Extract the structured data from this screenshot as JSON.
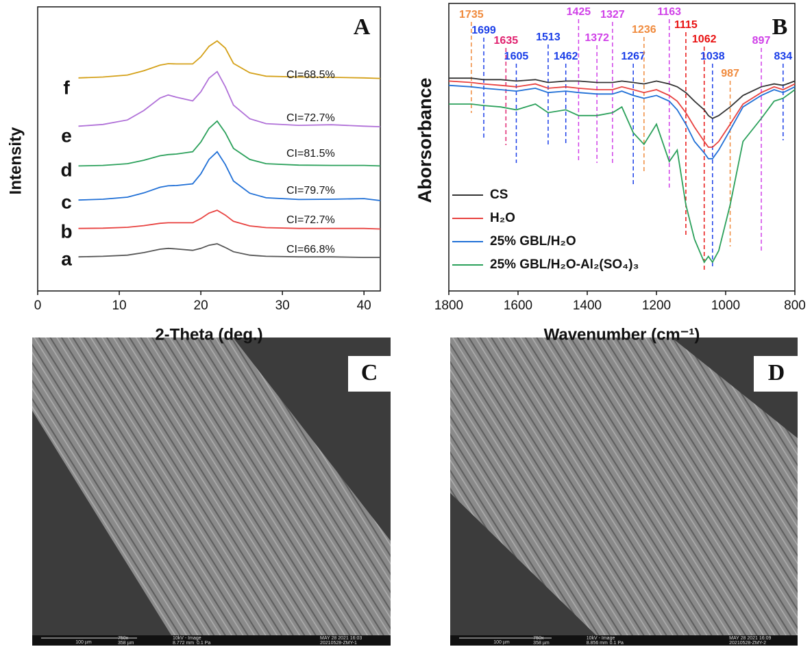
{
  "chart_data": [
    {
      "type": "line",
      "panel": "A",
      "xlabel": "2-Theta (deg.)",
      "ylabel": "Intensity",
      "xlim": [
        0,
        42
      ],
      "xticks": [
        0,
        10,
        20,
        30,
        40
      ],
      "ylim": [
        0,
        100
      ],
      "x": [
        5,
        8,
        11,
        13,
        15,
        16,
        17,
        19,
        20,
        21,
        22,
        23,
        24,
        26,
        28,
        32,
        36,
        40,
        42
      ],
      "series": [
        {
          "name": "a",
          "color": "#555555",
          "annotation": "CI=66.8%",
          "values": [
            12,
            12.2,
            12.6,
            13.5,
            14.7,
            15,
            14.8,
            14.3,
            15,
            16.1,
            16.6,
            15.3,
            13.8,
            12.6,
            12.2,
            12,
            12,
            11.8,
            11.8
          ]
        },
        {
          "name": "b",
          "color": "#e8413f",
          "annotation": "CI=72.7%",
          "values": [
            22,
            22.1,
            22.4,
            23,
            23.8,
            24,
            24,
            24,
            25.5,
            27.4,
            28.4,
            26.7,
            24.5,
            22.9,
            22.3,
            22,
            22,
            22,
            21.8
          ]
        },
        {
          "name": "c",
          "color": "#1f6fd6",
          "annotation": "CI=79.7%",
          "values": [
            32,
            32.3,
            33,
            34.5,
            36.5,
            37,
            37.1,
            37.7,
            41.2,
            46.3,
            49,
            44.5,
            38.7,
            34.4,
            32.8,
            32.2,
            32.3,
            32.5,
            31.8
          ]
        },
        {
          "name": "d",
          "color": "#2aa05a",
          "annotation": "CI=81.5%",
          "values": [
            44,
            44.2,
            44.8,
            46,
            47.6,
            48,
            48.2,
            49,
            52.4,
            57.2,
            59.8,
            55.7,
            50.2,
            46.3,
            44.8,
            44.3,
            44.2,
            44.2,
            44
          ]
        },
        {
          "name": "e",
          "color": "#b070d8",
          "annotation": "CI=72.7%",
          "values": [
            58,
            58.6,
            60.2,
            63.5,
            67.9,
            69,
            68.2,
            66.9,
            70.1,
            74.9,
            77.2,
            71.9,
            65.4,
            60.6,
            58.9,
            58.3,
            58.5,
            58,
            57.8
          ]
        },
        {
          "name": "f",
          "color": "#d4a017",
          "annotation": "CI=68.5%",
          "values": [
            75,
            75.3,
            76,
            77.5,
            79.5,
            80,
            79.9,
            79.9,
            82.4,
            86.1,
            88,
            85.5,
            80.1,
            76.8,
            75.6,
            75.3,
            75.2,
            75,
            74.8
          ]
        }
      ]
    },
    {
      "type": "line",
      "panel": "B",
      "xlabel": "Wavenumber (cm⁻¹)",
      "ylabel": "Aborsorbance",
      "xlim": [
        1800,
        800
      ],
      "xticks": [
        1800,
        1600,
        1400,
        1200,
        1000,
        800
      ],
      "ylim": [
        0,
        100
      ],
      "x": [
        1800,
        1735,
        1700,
        1650,
        1605,
        1550,
        1513,
        1462,
        1425,
        1372,
        1327,
        1300,
        1267,
        1236,
        1200,
        1163,
        1140,
        1115,
        1090,
        1062,
        1050,
        1038,
        1020,
        987,
        950,
        897,
        860,
        834,
        800
      ],
      "series": [
        {
          "name": "CS",
          "color": "#333333",
          "values": [
            74,
            74,
            73.5,
            73.5,
            73,
            73.5,
            72.5,
            73,
            73,
            72.5,
            72.5,
            73,
            72.5,
            72,
            73,
            72,
            71,
            69,
            66,
            63,
            61,
            60,
            61,
            64,
            68,
            71,
            72,
            71.5,
            73
          ]
        },
        {
          "name": "H₂O",
          "color": "#e8413f",
          "values": [
            73,
            72.5,
            72,
            71.5,
            71,
            72,
            70.5,
            71,
            70.5,
            70,
            70,
            71,
            70,
            69,
            70,
            68,
            66,
            62,
            57,
            52,
            50,
            50,
            52,
            58,
            65,
            69,
            71,
            70,
            72
          ]
        },
        {
          "name": "25% GBL/H₂O",
          "color": "#1f6fd6",
          "values": [
            71.5,
            71,
            70.5,
            70,
            69.5,
            70.5,
            69,
            69.5,
            69,
            68.5,
            68.5,
            69.5,
            68,
            67,
            68,
            66,
            63,
            58,
            52,
            48,
            46,
            46,
            49,
            56,
            64,
            68,
            70,
            69,
            71
          ]
        },
        {
          "name": "25% GBL/H₂O-Al₂(SO₄)₃",
          "color": "#2aa05a",
          "values": [
            65,
            65,
            64.5,
            64,
            63,
            65,
            62,
            63,
            61,
            61,
            62,
            64,
            55,
            51,
            58,
            45,
            49,
            30,
            18,
            10,
            12,
            10,
            14,
            30,
            52,
            60,
            66,
            67,
            70
          ]
        }
      ],
      "peaks": [
        {
          "x": 1735,
          "color": "#f08a3c"
        },
        {
          "x": 1699,
          "color": "#1a3ee8"
        },
        {
          "x": 1635,
          "color": "#e0206e"
        },
        {
          "x": 1605,
          "color": "#1a3ee8"
        },
        {
          "x": 1513,
          "color": "#1a3ee8"
        },
        {
          "x": 1462,
          "color": "#1a3ee8"
        },
        {
          "x": 1425,
          "color": "#d040e8"
        },
        {
          "x": 1372,
          "color": "#d040e8"
        },
        {
          "x": 1327,
          "color": "#d040e8"
        },
        {
          "x": 1267,
          "color": "#1a3ee8"
        },
        {
          "x": 1236,
          "color": "#f08a3c"
        },
        {
          "x": 1163,
          "color": "#d040e8"
        },
        {
          "x": 1115,
          "color": "#e81010"
        },
        {
          "x": 1062,
          "color": "#e81010"
        },
        {
          "x": 1038,
          "color": "#1a3ee8"
        },
        {
          "x": 987,
          "color": "#f08a3c"
        },
        {
          "x": 897,
          "color": "#d040e8"
        },
        {
          "x": 834,
          "color": "#1a3ee8"
        }
      ]
    }
  ],
  "images": [
    {
      "panel": "C",
      "info": [
        "100 µm",
        "750x",
        "358 µm",
        "10kV - Image",
        "8.772 mm",
        "0.1 Pa",
        "MAY 28 2021 16:03",
        "20210528-ZMY-1"
      ]
    },
    {
      "panel": "D",
      "info": [
        "100 µm",
        "750x",
        "358 µm",
        "10kV - Image",
        "8.856 mm",
        "0.1 Pa",
        "MAY 28 2021 16:09",
        "20210528-ZMY-2"
      ]
    }
  ]
}
